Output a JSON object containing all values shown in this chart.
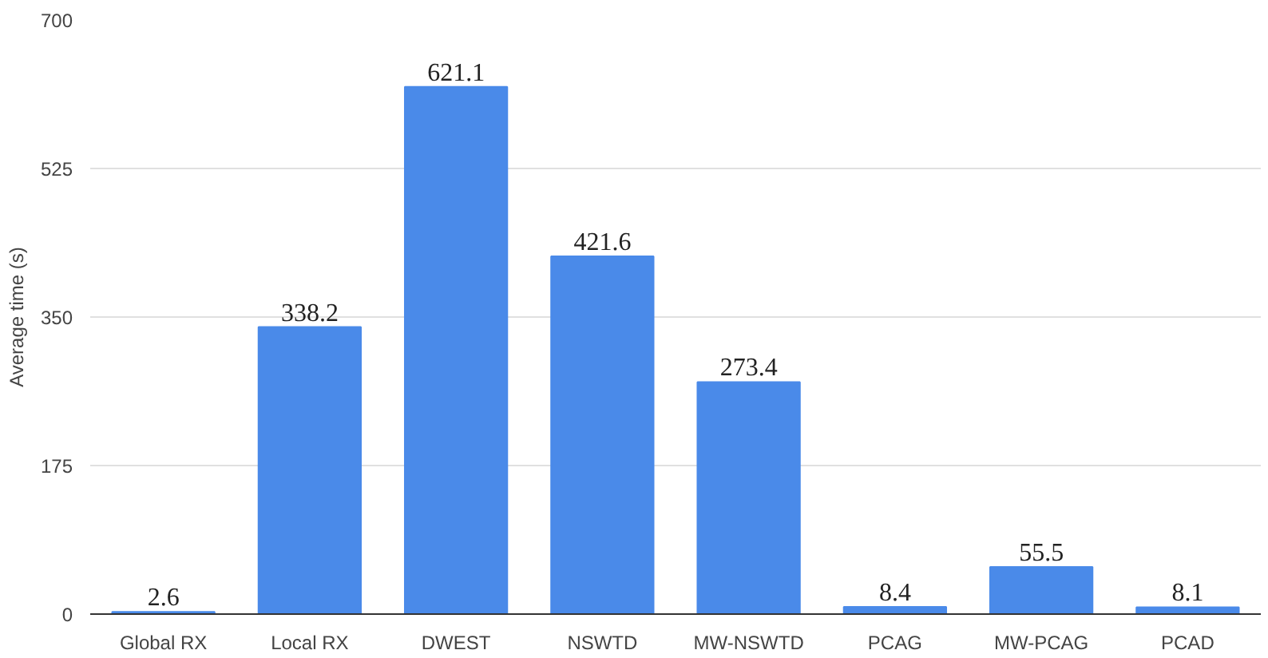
{
  "chart_data": {
    "type": "bar",
    "ylabel": "Average time (s)",
    "categories": [
      "Global RX",
      "Local RX",
      "DWEST",
      "NSWTD",
      "MW-NSWTD",
      "PCAG",
      "MW-PCAG",
      "PCAD"
    ],
    "values": [
      2.6,
      338.2,
      621.1,
      421.6,
      273.4,
      8.4,
      55.5,
      8.1
    ],
    "color": "#4a8ae9",
    "ylim": [
      0,
      700
    ],
    "yticks": [
      0,
      175,
      350,
      525,
      700
    ],
    "grid": "y",
    "data_labels": true
  }
}
